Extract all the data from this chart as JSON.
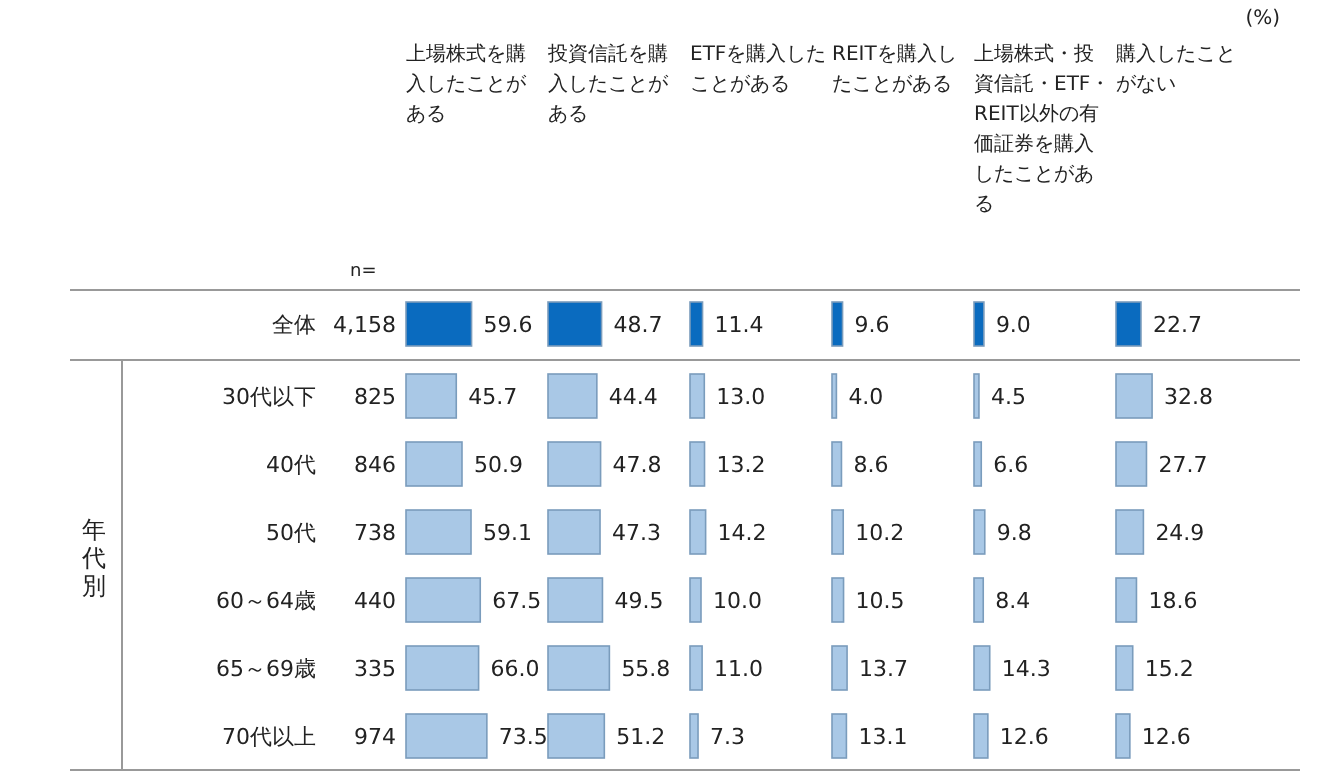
{
  "chart_data": [
    {
      "type": "bar",
      "orientation": "horizontal",
      "title": "上場株式を購入したことがある",
      "categories": [
        "全体",
        "30代以下",
        "40代",
        "50代",
        "60～64歳",
        "65～69歳",
        "70代以上"
      ],
      "values": [
        59.6,
        45.7,
        50.9,
        59.1,
        67.5,
        66.0,
        73.5
      ],
      "value_labels": [
        "59.6",
        "45.7",
        "50.9",
        "59.1",
        "67.5",
        "66.0",
        "73.5"
      ],
      "colors": [
        "#0a6bbf",
        "#a9c8e6",
        "#a9c8e6",
        "#a9c8e6",
        "#a9c8e6",
        "#a9c8e6",
        "#a9c8e6"
      ],
      "tick_labels": "y",
      "annotations": [
        "(%)",
        "n=",
        "4,158",
        "825",
        "846",
        "738",
        "440",
        "335",
        "974",
        "年代別"
      ]
    },
    {
      "type": "bar",
      "orientation": "horizontal",
      "title": "投資信託を購入したことがある",
      "categories": [
        null,
        null,
        null,
        null,
        null,
        null,
        null
      ],
      "values": [
        48.7,
        44.4,
        47.8,
        47.3,
        49.5,
        55.8,
        51.2
      ],
      "value_labels": [
        "48.7",
        "44.4",
        "47.8",
        "47.3",
        "49.5",
        "55.8",
        "51.2"
      ],
      "colors": [
        "#0a6bbf",
        "#a9c8e6",
        "#a9c8e6",
        "#a9c8e6",
        "#a9c8e6",
        "#a9c8e6",
        "#a9c8e6"
      ],
      "tick_labels": false
    },
    {
      "type": "bar",
      "orientation": "horizontal",
      "title": "ETFを購入したことがある",
      "categories": [
        null,
        null,
        null,
        null,
        null,
        null,
        null
      ],
      "values": [
        11.4,
        13.0,
        13.2,
        14.2,
        10.0,
        11.0,
        7.3
      ],
      "value_labels": [
        "11.4",
        "13.0",
        "13.2",
        "14.2",
        "10.0",
        "11.0",
        "7.3"
      ],
      "colors": [
        "#0a6bbf",
        "#a9c8e6",
        "#a9c8e6",
        "#a9c8e6",
        "#a9c8e6",
        "#a9c8e6",
        "#a9c8e6"
      ],
      "tick_labels": false
    },
    {
      "type": "bar",
      "orientation": "horizontal",
      "title": "REITを購入したことがある",
      "categories": [
        null,
        null,
        null,
        null,
        null,
        null,
        null
      ],
      "values": [
        9.6,
        4.0,
        8.6,
        10.2,
        10.5,
        13.7,
        13.1
      ],
      "value_labels": [
        "9.6",
        "4.0",
        "8.6",
        "10.2",
        "10.5",
        "13.7",
        "13.1"
      ],
      "colors": [
        "#0a6bbf",
        "#a9c8e6",
        "#a9c8e6",
        "#a9c8e6",
        "#a9c8e6",
        "#a9c8e6",
        "#a9c8e6"
      ],
      "tick_labels": false
    },
    {
      "type": "bar",
      "orientation": "horizontal",
      "title": "上場株式・投資信託・ETF・REIT以外の有価証券を購入したことがある",
      "categories": [
        null,
        null,
        null,
        null,
        null,
        null,
        null
      ],
      "values": [
        9.0,
        4.5,
        6.6,
        9.8,
        8.4,
        14.3,
        12.6
      ],
      "value_labels": [
        "9.0",
        "4.5",
        "6.6",
        "9.8",
        "8.4",
        "14.3",
        "12.6"
      ],
      "colors": [
        "#0a6bbf",
        "#a9c8e6",
        "#a9c8e6",
        "#a9c8e6",
        "#a9c8e6",
        "#a9c8e6",
        "#a9c8e6"
      ],
      "tick_labels": false
    },
    {
      "type": "bar",
      "orientation": "horizontal",
      "title": "購入したことがない",
      "categories": [
        null,
        null,
        null,
        null,
        null,
        null,
        null
      ],
      "values": [
        22.7,
        32.8,
        27.7,
        24.9,
        18.6,
        15.2,
        12.6
      ],
      "value_labels": [
        "22.7",
        "32.8",
        "27.7",
        "24.9",
        "18.6",
        "15.2",
        "12.6"
      ],
      "colors": [
        "#0a6bbf",
        "#a9c8e6",
        "#a9c8e6",
        "#a9c8e6",
        "#a9c8e6",
        "#a9c8e6",
        "#a9c8e6"
      ],
      "tick_labels": false
    }
  ]
}
